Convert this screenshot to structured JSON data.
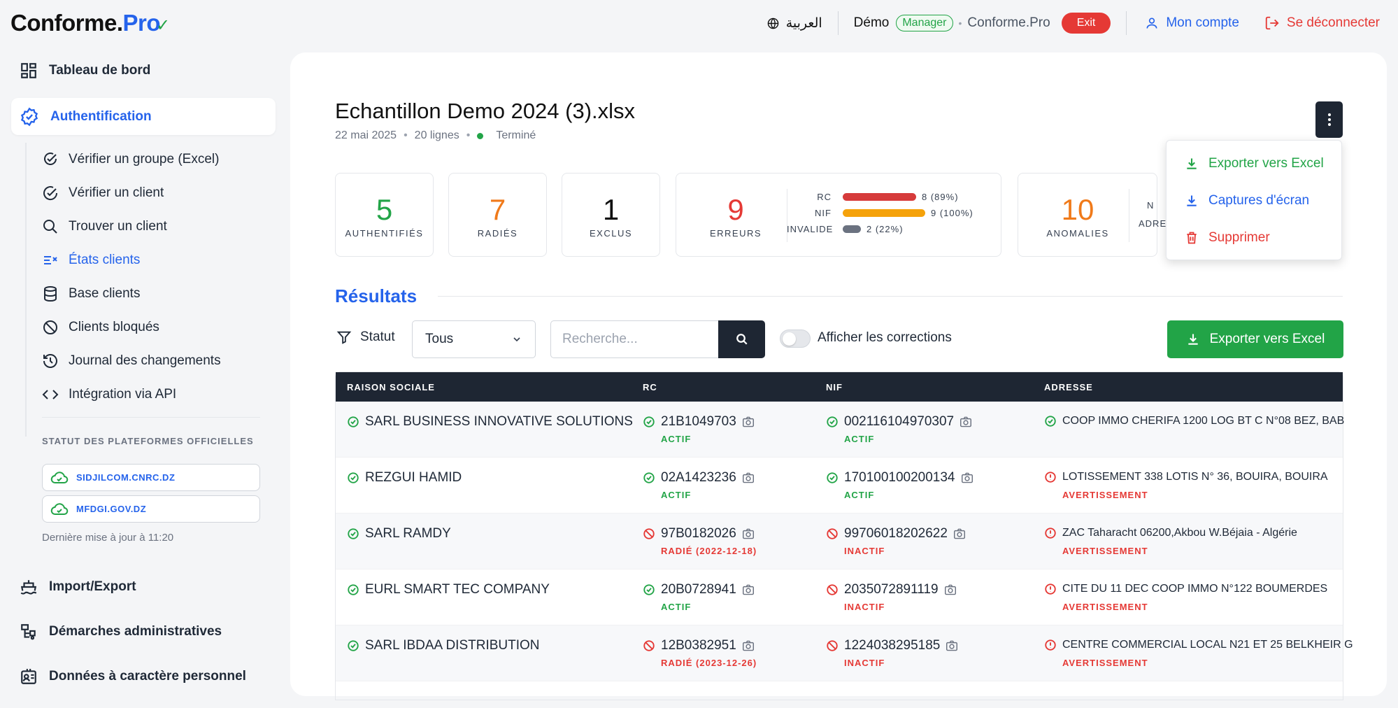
{
  "app": {
    "logo_main": "Conforme.",
    "logo_pro": "Pro"
  },
  "topbar": {
    "language": "العربية",
    "user": "Démo",
    "role_badge": "Manager",
    "brand": "Conforme.Pro",
    "exit_label": "Exit",
    "account_label": "Mon compte",
    "logout_label": "Se déconnecter"
  },
  "sidebar": {
    "dashboard": "Tableau de bord",
    "auth": "Authentification",
    "sub_items": [
      {
        "label": "Vérifier un groupe (Excel)",
        "icon": "check-group-icon"
      },
      {
        "label": "Vérifier un client",
        "icon": "check-circle-icon"
      },
      {
        "label": "Trouver un client",
        "icon": "search-icon"
      },
      {
        "label": "États clients",
        "icon": "list-check-icon"
      },
      {
        "label": "Base clients",
        "icon": "database-icon"
      },
      {
        "label": "Clients bloqués",
        "icon": "ban-icon"
      },
      {
        "label": "Journal des changements",
        "icon": "history-icon"
      },
      {
        "label": "Intégration via API",
        "icon": "code-icon"
      }
    ],
    "status_title": "STATUT DES PLATEFORMES OFFICIELLES",
    "platforms": [
      "SIDJILCOM.CNRC.DZ",
      "MFDGI.GOV.DZ"
    ],
    "last_update": "Dernière mise à jour à 11:20",
    "import_export": "Import/Export",
    "admin": "Démarches administratives",
    "personal": "Données à caractère personnel"
  },
  "file": {
    "title": "Echantillon Demo 2024 (3).xlsx",
    "date": "22 mai 2025",
    "lines": "20 lignes",
    "status": "Terminé"
  },
  "stats": {
    "authentifies": {
      "value": "5",
      "label": "AUTHENTIFIÉS"
    },
    "radies": {
      "value": "7",
      "label": "RADIÉS"
    },
    "exclus": {
      "value": "1",
      "label": "EXCLUS"
    },
    "erreurs": {
      "value": "9",
      "label": "ERREURS"
    },
    "error_breakdown": [
      {
        "key": "RC",
        "text": "8 (89%)",
        "fraction": 0.89,
        "color": "#d63b3b"
      },
      {
        "key": "NIF",
        "text": "9 (100%)",
        "fraction": 1.0,
        "color": "#f5a20b"
      },
      {
        "key": "INVALIDE",
        "text": "2 (22%)",
        "fraction": 0.22,
        "color": "#6b7280"
      }
    ],
    "anomalies": {
      "value": "10",
      "label": "ANOMALIES"
    },
    "anomalies_side_top": "N",
    "anomalies_side_label": "ADRE"
  },
  "colors": {
    "green": "#22a447",
    "orange": "#f07a1a",
    "red": "#e53935",
    "blue": "#2563eb",
    "dark": "#1e2633"
  },
  "results": {
    "title": "Résultats",
    "filter_label": "Statut",
    "select_value": "Tous",
    "search_placeholder": "Recherche...",
    "toggle_label": "Afficher les corrections",
    "export_label": "Exporter vers Excel"
  },
  "menu": {
    "export": "Exporter vers Excel",
    "captures": "Captures d'écran",
    "delete": "Supprimer"
  },
  "table": {
    "headers": [
      "RAISON SOCIALE",
      "RC",
      "NIF",
      "ADRESSE"
    ],
    "rows": [
      {
        "name": "SARL BUSINESS INNOVATIVE SOLUTIONS",
        "rc": "21B1049703",
        "rc_status": "ACTIF",
        "rc_ok": true,
        "nif": "002116104970307",
        "nif_status": "ACTIF",
        "nif_ok": true,
        "addr": "COOP IMMO CHERIFA 1200 LOG BT C N°08 BEZ, BAB",
        "addr_status": "",
        "addr_ok": true
      },
      {
        "name": "REZGUI HAMID",
        "rc": "02A1423236",
        "rc_status": "ACTIF",
        "rc_ok": true,
        "nif": "170100100200134",
        "nif_status": "ACTIF",
        "nif_ok": true,
        "addr": "LOTISSEMENT 338 LOTIS N° 36, BOUIRA, BOUIRA",
        "addr_status": "AVERTISSEMENT",
        "addr_ok": false
      },
      {
        "name": "SARL RAMDY",
        "rc": "97B0182026",
        "rc_status": "RADIÉ (2022-12-18)",
        "rc_ok": false,
        "nif": "99706018202622",
        "nif_status": "INACTIF",
        "nif_ok": false,
        "addr": "ZAC Taharacht 06200,Akbou W.Béjaia - Algérie",
        "addr_status": "AVERTISSEMENT",
        "addr_ok": false
      },
      {
        "name": "EURL SMART TEC COMPANY",
        "rc": "20B0728941",
        "rc_status": "ACTIF",
        "rc_ok": true,
        "nif": "2035072891119",
        "nif_status": "INACTIF",
        "nif_ok": false,
        "addr": "CITE DU 11 DEC COOP IMMO N°122 BOUMERDES",
        "addr_status": "AVERTISSEMENT",
        "addr_ok": false
      },
      {
        "name": "SARL IBDAA DISTRIBUTION",
        "rc": "12B0382951",
        "rc_status": "RADIÉ (2023-12-26)",
        "rc_ok": false,
        "nif": "1224038295185",
        "nif_status": "INACTIF",
        "nif_ok": false,
        "addr": "CENTRE COMMERCIAL LOCAL N21 ET 25 BELKHEIR G",
        "addr_status": "AVERTISSEMENT",
        "addr_ok": false
      }
    ]
  }
}
